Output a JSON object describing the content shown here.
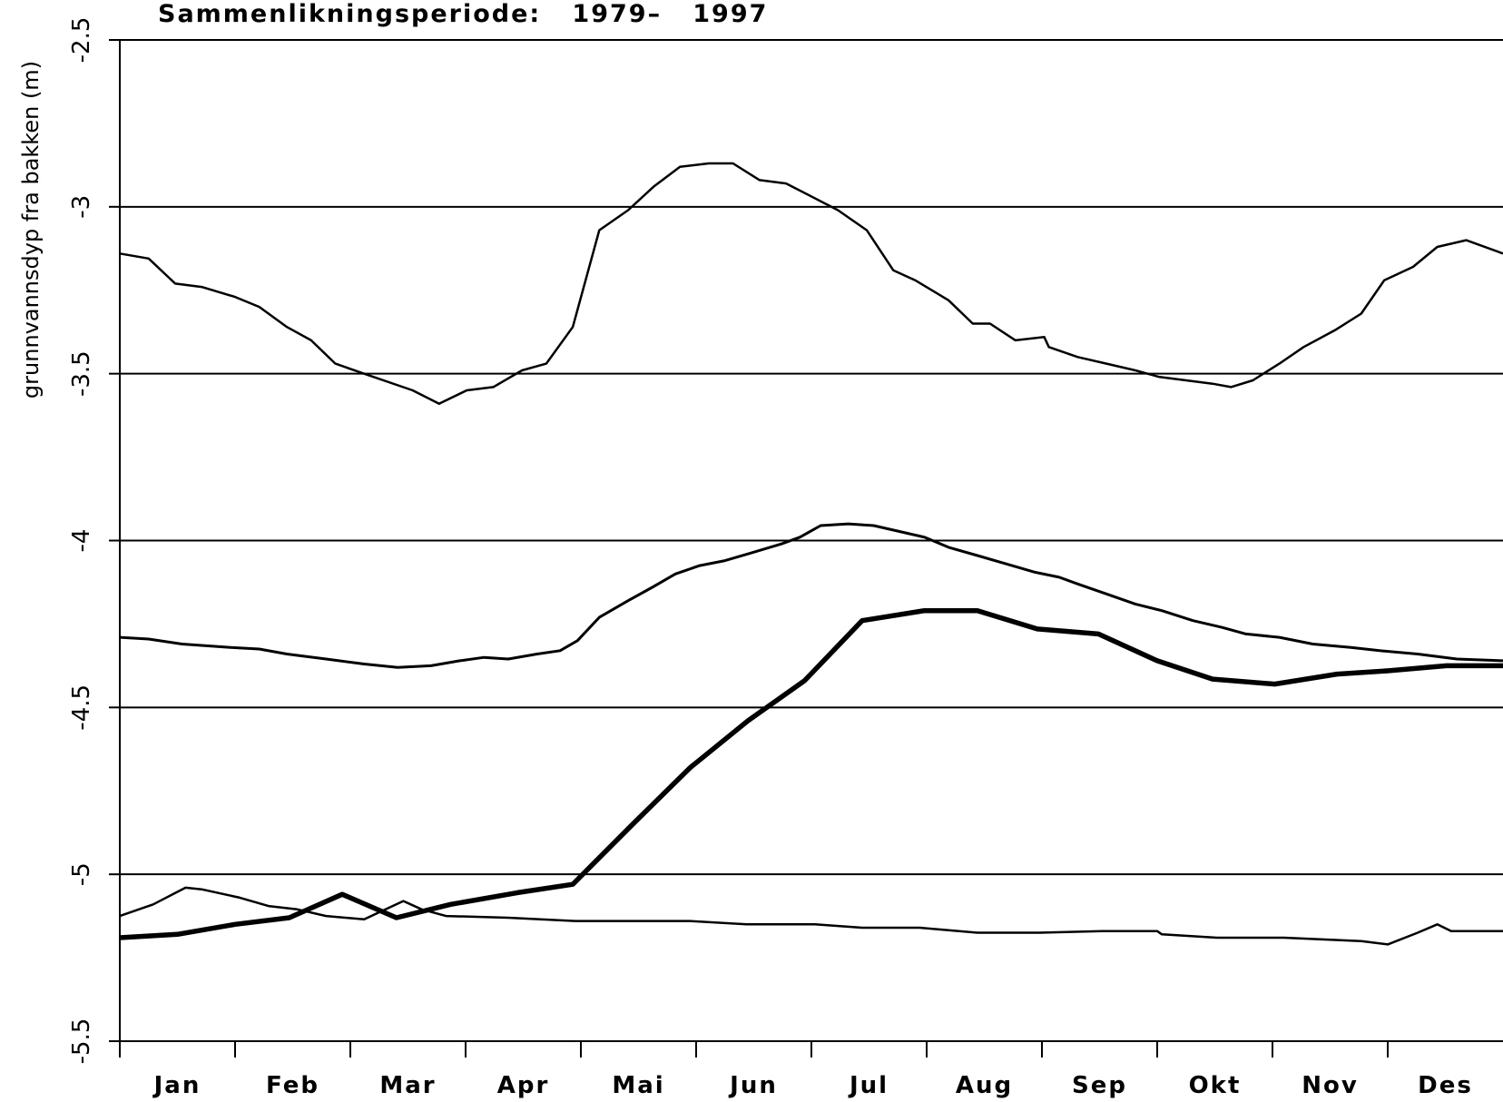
{
  "chart_data": {
    "type": "line",
    "title": "Sammenlikningsperiode:   1979–   1997",
    "ylabel": "grunnvannsdyp fra bakken (m)",
    "categories": [
      "Jan",
      "Feb",
      "Mar",
      "Apr",
      "Mai",
      "Jun",
      "Jul",
      "Aug",
      "Sep",
      "Okt",
      "Nov",
      "Des"
    ],
    "ylim": [
      -5.5,
      -2.5
    ],
    "yticks": [
      -5.5,
      -5.0,
      -4.5,
      -4.0,
      -3.5,
      -3.0,
      -2.5
    ],
    "grid": true,
    "series": [
      {
        "color": "#000000",
        "linewidth": 2.5,
        "x": [
          0,
          0.25,
          0.48,
          0.71,
          1.0,
          1.21,
          1.45,
          1.66,
          1.87,
          2.12,
          2.54,
          2.77,
          3.01,
          3.24,
          3.49,
          3.7,
          3.93,
          4.16,
          4.41,
          4.63,
          4.86,
          5.11,
          5.32,
          5.55,
          5.78,
          6.23,
          6.48,
          6.71,
          6.9,
          7.19,
          7.4,
          7.55,
          7.77,
          8.02,
          8.06,
          8.31,
          8.56,
          8.81,
          9.02,
          9.48,
          9.64,
          9.83,
          10.06,
          10.27,
          10.54,
          10.77,
          10.97,
          11.22,
          11.43,
          11.68,
          12.0
        ],
        "values": [
          -3.14,
          -3.155,
          -3.23,
          -3.24,
          -3.27,
          -3.3,
          -3.36,
          -3.4,
          -3.47,
          -3.5,
          -3.55,
          -3.59,
          -3.55,
          -3.54,
          -3.49,
          -3.47,
          -3.36,
          -3.07,
          -3.01,
          -2.94,
          -2.88,
          -2.87,
          -2.87,
          -2.92,
          -2.93,
          -3.01,
          -3.07,
          -3.19,
          -3.22,
          -3.28,
          -3.35,
          -3.35,
          -3.4,
          -3.39,
          -3.42,
          -3.45,
          -3.47,
          -3.49,
          -3.51,
          -3.53,
          -3.54,
          -3.52,
          -3.47,
          -3.42,
          -3.37,
          -3.32,
          -3.22,
          -3.18,
          -3.12,
          -3.1,
          -3.14
        ]
      },
      {
        "color": "#000000",
        "linewidth": 3,
        "x": [
          0,
          0.25,
          0.54,
          0.96,
          1.21,
          1.45,
          1.79,
          2.12,
          2.41,
          2.7,
          2.95,
          3.16,
          3.37,
          3.62,
          3.82,
          3.97,
          4.16,
          4.41,
          4.62,
          4.82,
          5.03,
          5.25,
          5.45,
          5.74,
          5.9,
          6.08,
          6.32,
          6.54,
          6.73,
          6.98,
          7.19,
          7.44,
          7.69,
          7.94,
          8.15,
          8.31,
          8.56,
          8.81,
          9.04,
          9.31,
          9.56,
          9.77,
          10.06,
          10.35,
          10.68,
          10.93,
          11.26,
          11.6,
          12.0
        ],
        "values": [
          -4.29,
          -4.295,
          -4.31,
          -4.32,
          -4.325,
          -4.34,
          -4.355,
          -4.37,
          -4.38,
          -4.375,
          -4.36,
          -4.35,
          -4.355,
          -4.34,
          -4.33,
          -4.3,
          -4.23,
          -4.18,
          -4.14,
          -4.1,
          -4.075,
          -4.06,
          -4.04,
          -4.01,
          -3.99,
          -3.955,
          -3.95,
          -3.955,
          -3.97,
          -3.99,
          -4.02,
          -4.045,
          -4.07,
          -4.095,
          -4.11,
          -4.13,
          -4.16,
          -4.19,
          -4.21,
          -4.24,
          -4.26,
          -4.28,
          -4.29,
          -4.31,
          -4.32,
          -4.33,
          -4.34,
          -4.355,
          -4.36
        ]
      },
      {
        "color": "#000000",
        "linewidth": 5.5,
        "x": [
          0,
          0.5,
          1.0,
          1.47,
          1.93,
          2.4,
          2.87,
          3.45,
          3.93,
          4.45,
          4.95,
          5.45,
          5.94,
          6.44,
          6.98,
          7.44,
          7.96,
          8.49,
          9.0,
          9.48,
          10.02,
          10.56,
          11.01,
          11.51,
          12.0
        ],
        "values": [
          -5.19,
          -5.18,
          -5.15,
          -5.13,
          -5.06,
          -5.13,
          -5.09,
          -5.055,
          -5.03,
          -4.85,
          -4.68,
          -4.54,
          -4.42,
          -4.24,
          -4.21,
          -4.21,
          -4.265,
          -4.28,
          -4.36,
          -4.415,
          -4.43,
          -4.4,
          -4.39,
          -4.375,
          -4.375
        ]
      },
      {
        "color": "#000000",
        "linewidth": 2.5,
        "x": [
          0,
          0.29,
          0.57,
          0.71,
          1.04,
          1.29,
          1.54,
          1.79,
          2.12,
          2.46,
          2.62,
          2.83,
          3.37,
          3.95,
          4.94,
          5.44,
          6.03,
          6.44,
          6.94,
          7.44,
          7.98,
          8.52,
          9.0,
          9.04,
          9.52,
          10.1,
          10.77,
          11.0,
          11.26,
          11.43,
          11.55,
          12.0
        ],
        "values": [
          -5.125,
          -5.09,
          -5.04,
          -5.045,
          -5.07,
          -5.095,
          -5.105,
          -5.125,
          -5.135,
          -5.08,
          -5.105,
          -5.125,
          -5.13,
          -5.14,
          -5.14,
          -5.15,
          -5.15,
          -5.16,
          -5.16,
          -5.175,
          -5.175,
          -5.17,
          -5.17,
          -5.18,
          -5.19,
          -5.19,
          -5.2,
          -5.21,
          -5.175,
          -5.15,
          -5.17,
          -5.17
        ]
      }
    ]
  }
}
